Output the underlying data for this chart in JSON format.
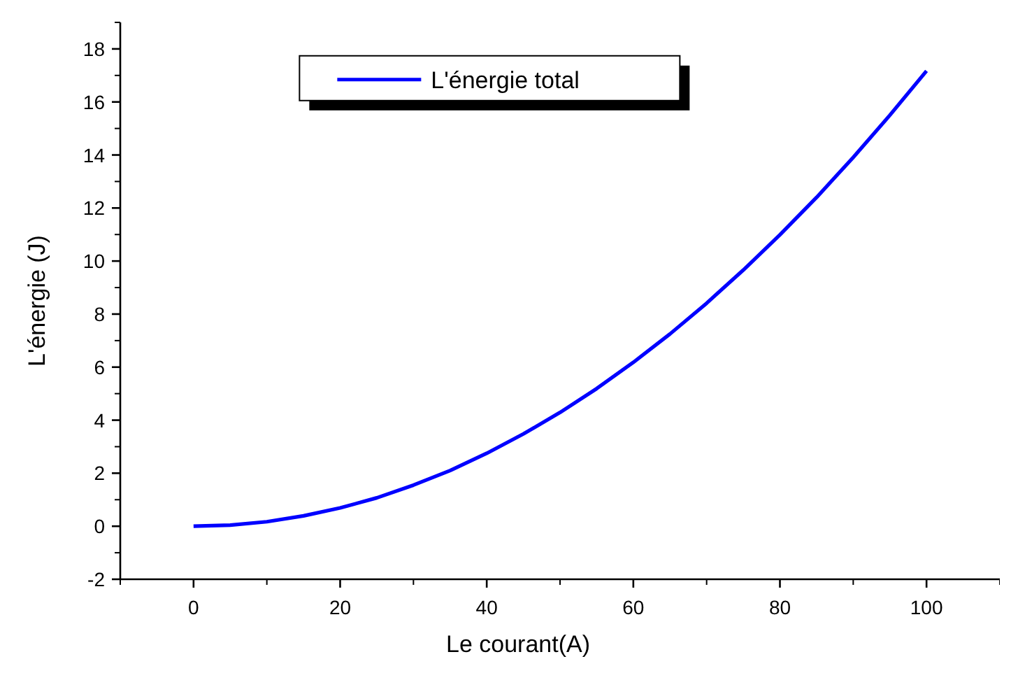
{
  "chart_data": {
    "type": "line",
    "xlabel": "Le courant(A)",
    "ylabel": "L'énergie (J)",
    "x": [
      0,
      5,
      10,
      15,
      20,
      25,
      30,
      35,
      40,
      45,
      50,
      55,
      60,
      65,
      70,
      75,
      80,
      85,
      90,
      95,
      100
    ],
    "series": [
      {
        "name": "L'énergie total",
        "color": "#0000ff",
        "values": [
          0,
          0.04,
          0.17,
          0.39,
          0.69,
          1.07,
          1.55,
          2.1,
          2.75,
          3.48,
          4.29,
          5.19,
          6.18,
          7.25,
          8.41,
          9.66,
          10.99,
          12.4,
          13.91,
          15.5,
          17.17
        ]
      }
    ],
    "xlim": [
      -10,
      110
    ],
    "xticks": [
      0,
      20,
      40,
      60,
      80,
      100
    ],
    "ylim": [
      -2,
      19
    ],
    "yticks": [
      -2,
      0,
      2,
      4,
      6,
      8,
      10,
      12,
      14,
      16,
      18
    ],
    "grid": false,
    "legend": "top",
    "marker": "none",
    "line_style": "solid"
  }
}
